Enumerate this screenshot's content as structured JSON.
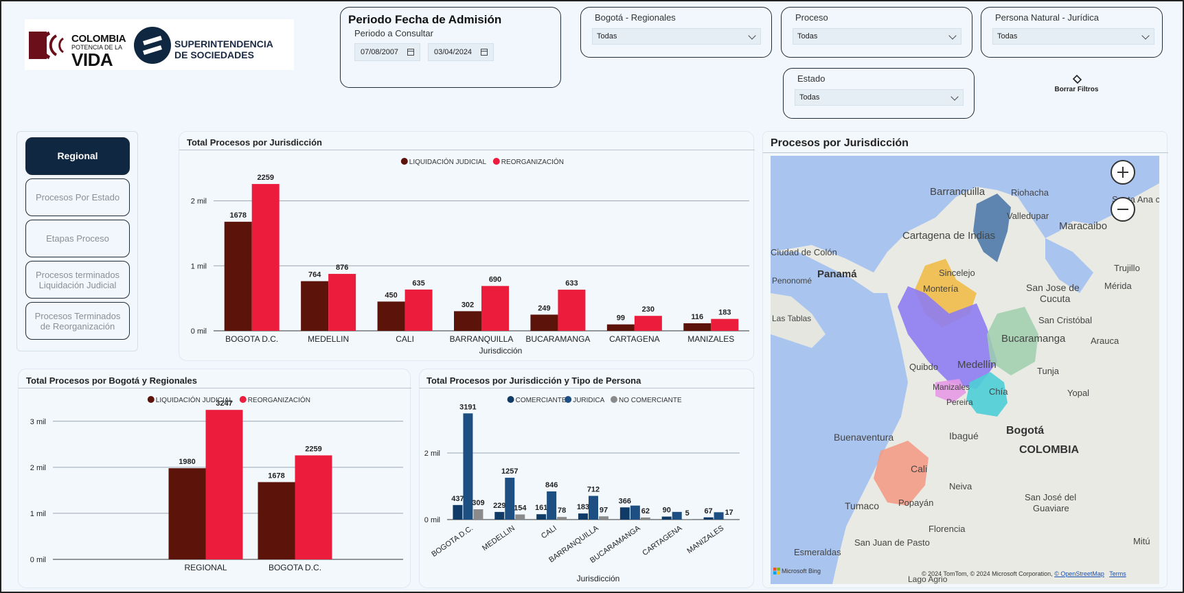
{
  "logo": {
    "colombia": "COLOMBIA",
    "potencia": "POTENCIA DE LA",
    "vida": "VIDA",
    "super_line1": "SUPERINTENDENCIA",
    "super_line2": "DE SOCIEDADES"
  },
  "filters": {
    "periodo": {
      "title": "Periodo Fecha de Admisión",
      "subtitle": "Periodo a Consultar",
      "start": "07/08/2007",
      "end": "03/04/2024"
    },
    "regionales": {
      "label": "Bogotá - Regionales",
      "value": "Todas"
    },
    "proceso": {
      "label": "Proceso",
      "value": "Todas"
    },
    "persona": {
      "label": "Persona Natural - Jurídica",
      "value": "Todas"
    },
    "estado": {
      "label": "Estado",
      "value": "Todas"
    },
    "clear": {
      "label": "Borrar Filtros",
      "icon": "eraser-icon"
    }
  },
  "nav": {
    "items": [
      {
        "label": "Regional",
        "active": true
      },
      {
        "label": "Procesos Por Estado",
        "active": false
      },
      {
        "label": "Etapas Proceso",
        "active": false
      },
      {
        "label": "Procesos terminados Liquidación Judicial",
        "active": false
      },
      {
        "label": "Procesos Terminados de Reorganización",
        "active": false
      }
    ]
  },
  "colors": {
    "liquidacion": "#5c130a",
    "reorganizacion": "#ec1c3c",
    "comerciante": "#0f3b66",
    "juridica": "#1d4f82",
    "no_comerciante": "#8a8a8a"
  },
  "chart_data": [
    {
      "id": "jurisdiccion",
      "type": "bar",
      "title": "Total Procesos por Jurisdicción",
      "xlabel": "Jurisdicción",
      "ylabel": "",
      "categories": [
        "BOGOTA D.C.",
        "MEDELLIN",
        "CALI",
        "BARRANQUILLA",
        "BUCARAMANGA",
        "CARTAGENA",
        "MANIZALES"
      ],
      "series": [
        {
          "name": "LIQUIDACIÓN JUDICIAL",
          "values": [
            1678,
            764,
            450,
            302,
            249,
            99,
            116
          ]
        },
        {
          "name": "REORGANIZACIÓN",
          "values": [
            2259,
            876,
            635,
            690,
            633,
            230,
            183
          ]
        }
      ],
      "yticks": [
        {
          "v": 0,
          "label": "0 mil"
        },
        {
          "v": 1000,
          "label": "1 mil"
        },
        {
          "v": 2000,
          "label": "2 mil"
        }
      ],
      "ylim": [
        0,
        2450
      ],
      "legend": "top-center",
      "grid": true
    },
    {
      "id": "regionales",
      "type": "bar",
      "title": "Total Procesos por Bogotá y Regionales",
      "xlabel": "",
      "ylabel": "",
      "categories": [
        "REGIONAL",
        "BOGOTA D.C."
      ],
      "series": [
        {
          "name": "LIQUIDACIÓN JUDICIAL",
          "values": [
            1980,
            1678
          ]
        },
        {
          "name": "REORGANIZACIÓN",
          "values": [
            3247,
            2259
          ]
        }
      ],
      "yticks": [
        {
          "v": 0,
          "label": "0 mil"
        },
        {
          "v": 1000,
          "label": "1 mil"
        },
        {
          "v": 2000,
          "label": "2 mil"
        },
        {
          "v": 3000,
          "label": "3 mil"
        }
      ],
      "ylim": [
        0,
        3250
      ],
      "legend": "top-center",
      "grid": true
    },
    {
      "id": "tipo_persona",
      "type": "bar",
      "title": "Total Procesos por Jurisdicción y Tipo de Persona",
      "xlabel": "Jurisdicción",
      "ylabel": "",
      "categories": [
        "BOGOTA D.C.",
        "MEDELLIN",
        "CALI",
        "BARRANQUILLA",
        "BUCARAMANGA",
        "CARTAGENA",
        "MANIZALES"
      ],
      "series": [
        {
          "name": "COMERCIANTE",
          "values": [
            437,
            229,
            161,
            183,
            366,
            90,
            67
          ]
        },
        {
          "name": "JURIDICA",
          "values": [
            3191,
            1257,
            846,
            712,
            420,
            230,
            220
          ]
        },
        {
          "name": "NO COMERCIANTE",
          "values": [
            309,
            154,
            78,
            97,
            62,
            5,
            17
          ]
        }
      ],
      "labels": {
        "COMERCIANTE": [
          "437",
          "229",
          "161",
          "183",
          "366",
          "90",
          "67"
        ],
        "JURIDICA": [
          "3191",
          "1257",
          "846",
          "712",
          "",
          "",
          ""
        ],
        "NO COMERCIANTE": [
          "309",
          "154",
          "78",
          "97",
          "62",
          "5",
          "17"
        ]
      },
      "yticks": [
        {
          "v": 0,
          "label": "0 mil"
        },
        {
          "v": 2000,
          "label": "2 mil"
        }
      ],
      "ylim": [
        0,
        3300
      ],
      "legend": "top-center",
      "grid": true
    }
  ],
  "map": {
    "title": "Procesos por Jurisdicción",
    "labels": [
      "Barranquilla",
      "Riohacha",
      "Santa Ana c",
      "Valledupar",
      "Maracaibo",
      "Cartagena de Indias",
      "Ciudad de Colón",
      "Panamá",
      "Sincelejo",
      "Trujillo",
      "Penonomé",
      "Montería",
      "San Jose de",
      "Mérida",
      "Cucuta",
      "Las Tablas",
      "San Cristóbal",
      "Bucaramanga",
      "Arauca",
      "Quibdo",
      "Medellín",
      "Tunja",
      "Manizales",
      "Chía",
      "Yopal",
      "Pereira",
      "Buenaventura",
      "Ibagué",
      "Bogotá",
      "COLOMBIA",
      "Cali",
      "Neiva",
      "Tumaco",
      "Popayán",
      "San José del",
      "Guaviare",
      "Florencia",
      "San Juan de Pasto",
      "Mitú",
      "Esmeraldas",
      "Lago Agrio"
    ],
    "attribution": "© 2024 TomTom, © 2024 Microsoft Corporation,",
    "osm": "© OpenStreetMap",
    "terms": "Terms",
    "provider": "Microsoft Bing"
  }
}
